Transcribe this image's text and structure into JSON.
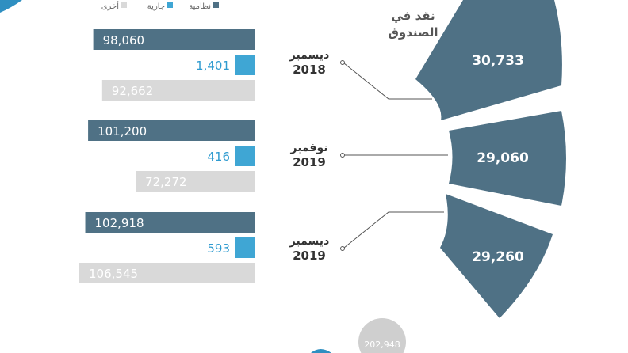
{
  "legend": {
    "items": [
      {
        "label": "نظامية",
        "color": "#4f7185"
      },
      {
        "label": "جارية",
        "color": "#3fa6d4"
      },
      {
        "label": "أخرى",
        "color": "#d9d9d9"
      }
    ]
  },
  "cash_label_line1": "نقد في",
  "cash_label_line2": "الصندوق",
  "bottom_partial_value": "202,948",
  "chart_data": {
    "type": "bar",
    "orientation": "horizontal",
    "categories": [
      {
        "month": "ديسمبر",
        "year": "2018"
      },
      {
        "month": "نوفمبر",
        "year": "2019"
      },
      {
        "month": "ديسمبر",
        "year": "2019"
      }
    ],
    "series": [
      {
        "name": "نظامية",
        "color": "#4f7185",
        "values": [
          98060,
          101200,
          102918
        ],
        "labels": [
          "98,060",
          "101,200",
          "102,918"
        ]
      },
      {
        "name": "جارية",
        "color": "#3fa6d4",
        "values": [
          1401,
          416,
          593
        ],
        "labels": [
          "1,401",
          "416",
          "593"
        ]
      },
      {
        "name": "أخرى",
        "color": "#d9d9d9",
        "values": [
          92662,
          72272,
          106545
        ],
        "labels": [
          "92,662",
          "72,272",
          "106,545"
        ]
      }
    ],
    "cash_in_fund": {
      "values": [
        30733,
        29060,
        29260
      ],
      "labels": [
        "30,733",
        "29,060",
        "29,260"
      ],
      "color": "#4f7185"
    }
  }
}
